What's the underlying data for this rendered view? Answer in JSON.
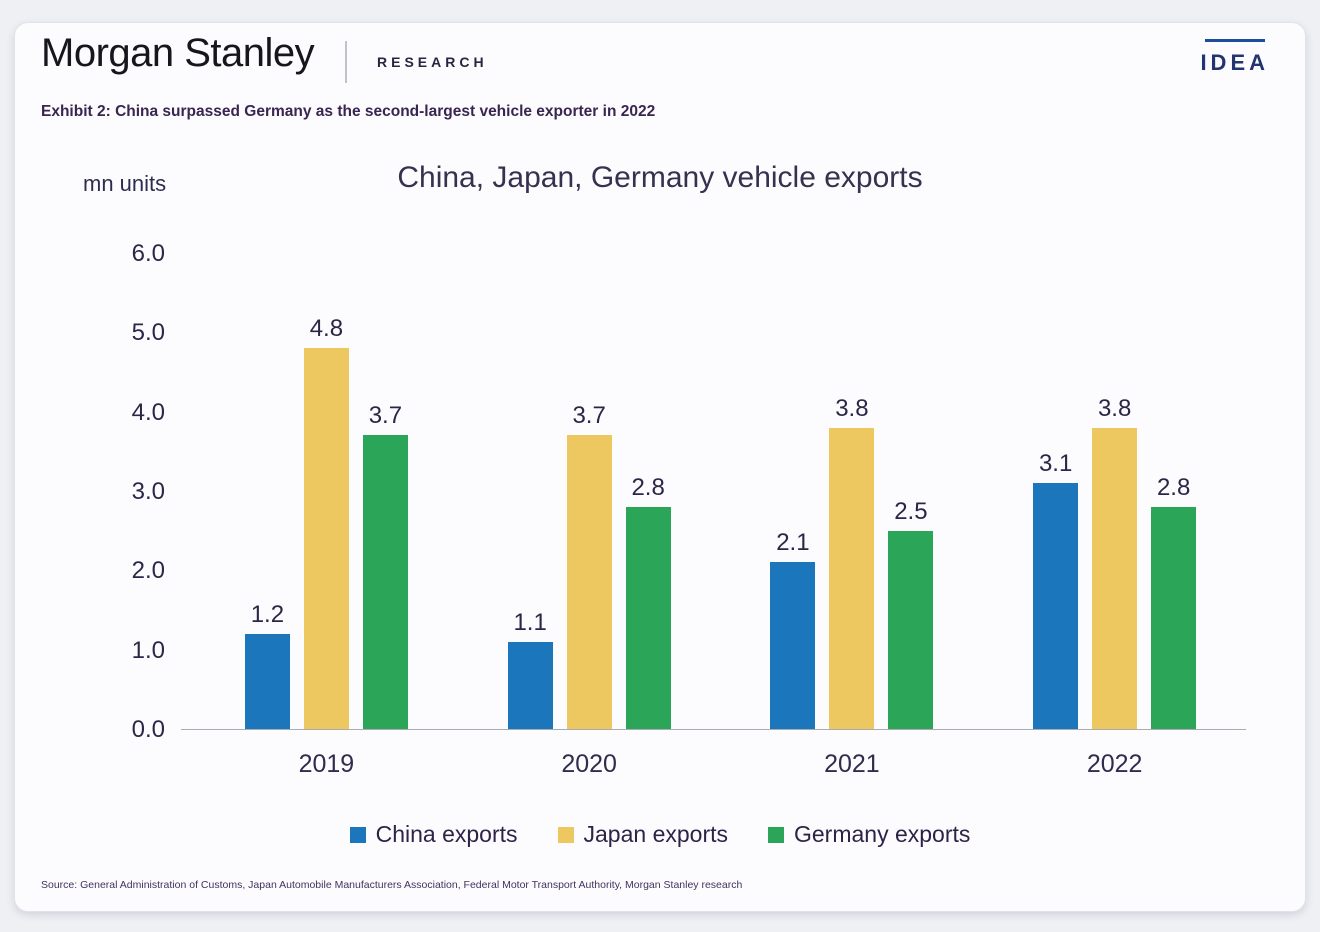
{
  "header": {
    "brand": "Morgan Stanley",
    "division": "RESEARCH",
    "idea": "IDEA"
  },
  "exhibit": {
    "text": "Exhibit 2:  China surpassed Germany as the second-largest vehicle exporter in 2022"
  },
  "chart_data": {
    "type": "bar",
    "title": "China, Japan, Germany vehicle exports",
    "ylabel": "mn units",
    "categories": [
      "2019",
      "2020",
      "2021",
      "2022"
    ],
    "series": [
      {
        "name": "China exports",
        "color": "#1B76BC",
        "values": [
          1.2,
          1.1,
          2.1,
          3.1
        ]
      },
      {
        "name": "Japan exports",
        "color": "#EDC860",
        "values": [
          4.8,
          3.7,
          3.8,
          3.8
        ]
      },
      {
        "name": "Germany exports",
        "color": "#2BA558",
        "values": [
          3.7,
          2.8,
          2.5,
          2.8
        ]
      }
    ],
    "ylim": [
      0,
      6
    ],
    "ytick_step": 1,
    "ytick_labels": [
      "6.0",
      "5.0",
      "4.0",
      "3.0",
      "2.0",
      "1.0",
      "0.0"
    ],
    "grid": false,
    "legend_position": "bottom"
  },
  "footer": {
    "source": "Source: General Administration of Customs, Japan Automobile Manufacturers Association, Federal Motor Transport Authority, Morgan Stanley research"
  },
  "colors": {
    "china": "#1B76BC",
    "japan": "#EDC860",
    "germany": "#2BA558",
    "text_dark": "#2E2747",
    "idea_navy": "#23356E",
    "axis": "#AAACB2"
  }
}
